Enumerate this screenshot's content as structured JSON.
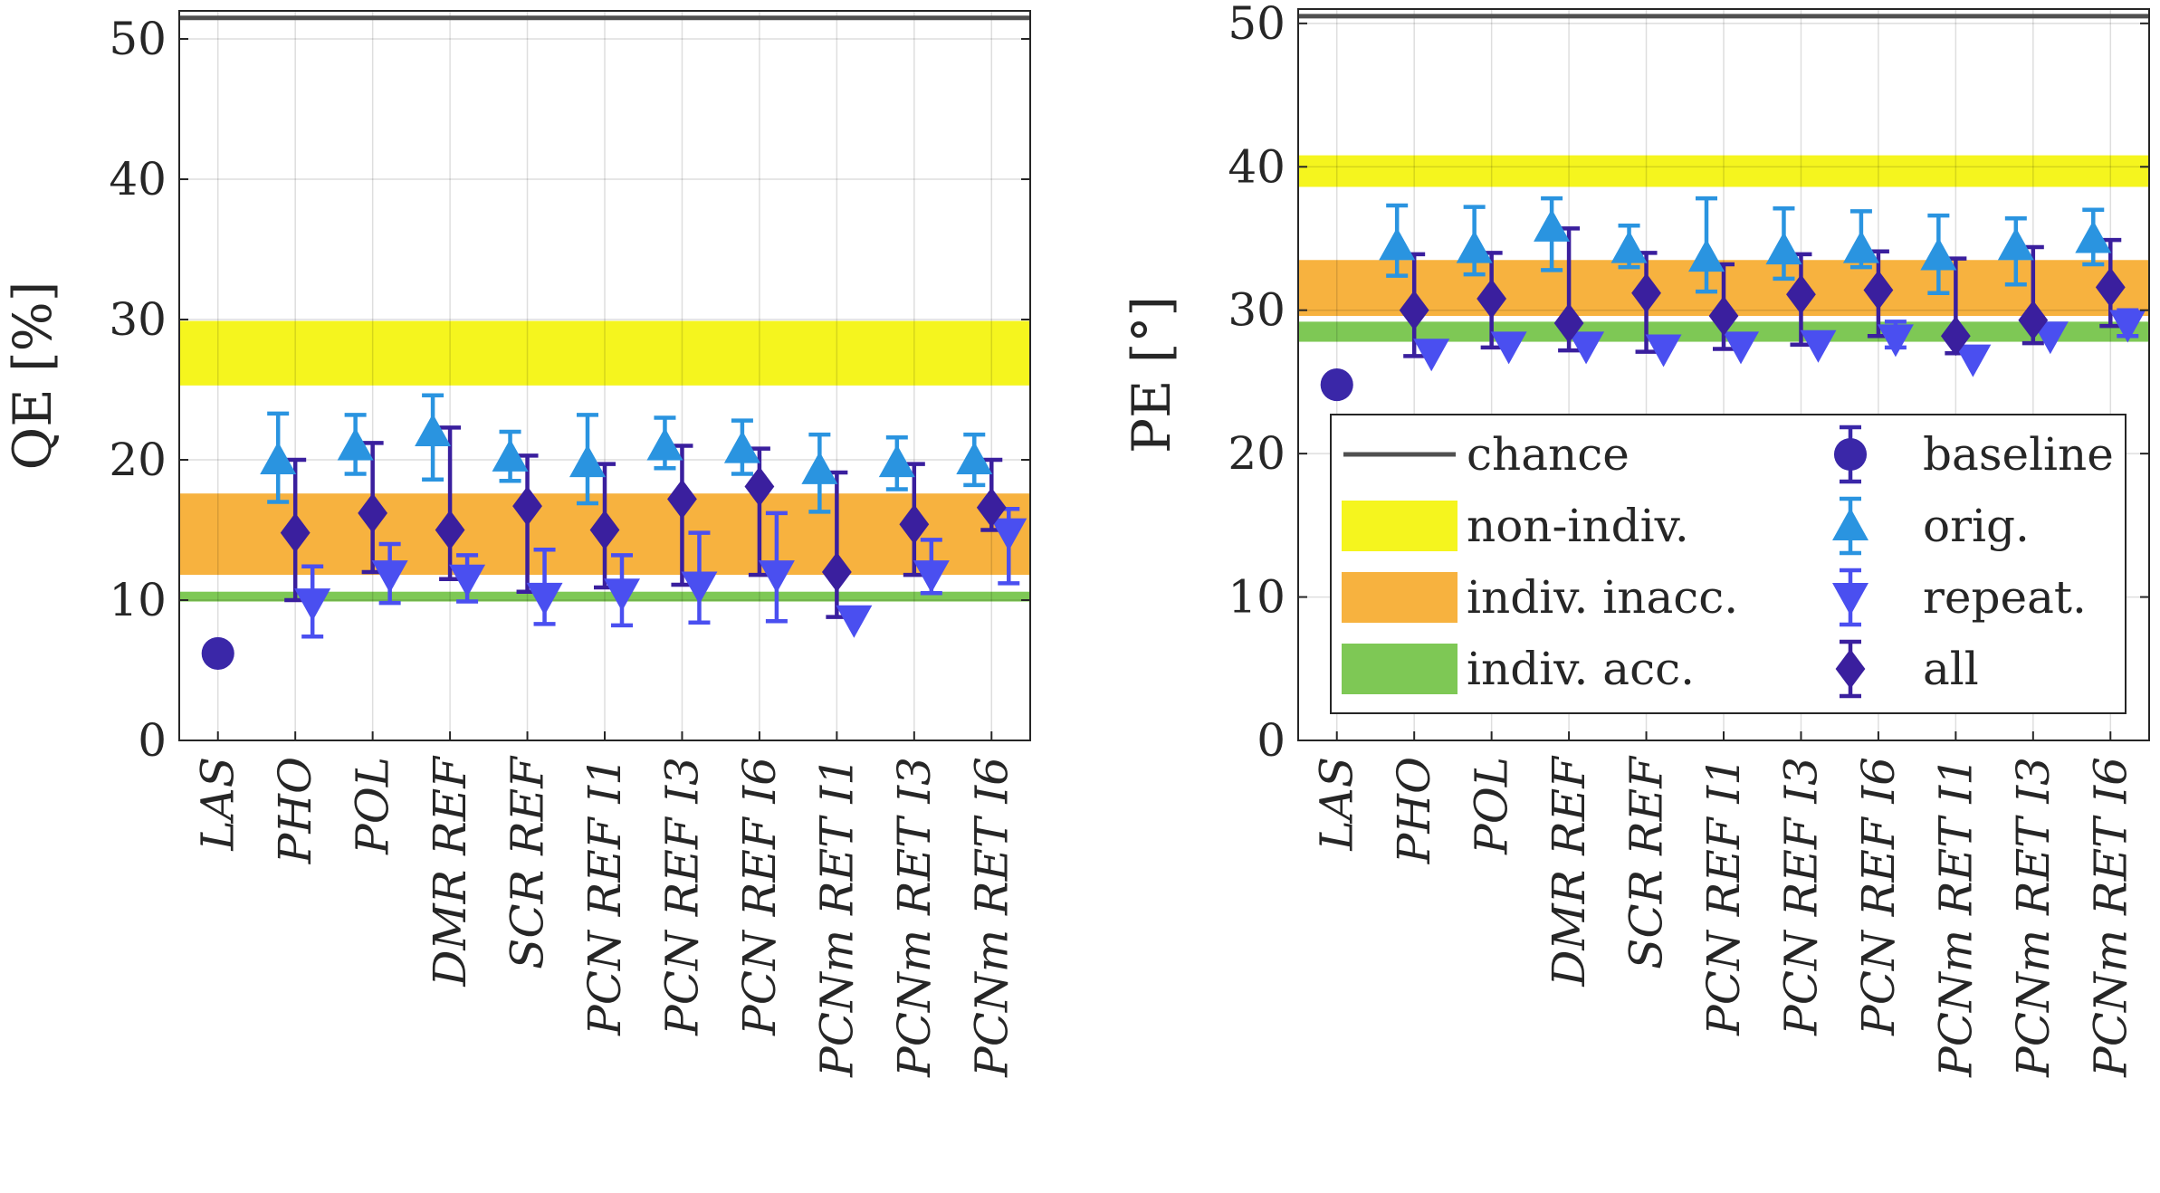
{
  "chart_data": [
    {
      "type": "errorbar",
      "ylabel": "QE [%]",
      "ylim": [
        0,
        52
      ],
      "yticks": [
        0,
        10,
        20,
        30,
        40,
        50
      ],
      "categories": [
        "LAS",
        "PHO",
        "POL",
        "DMR REF",
        "SCR REF",
        "PCN REF I1",
        "PCN REF I3",
        "PCN REF I6",
        "PCNm RET I1",
        "PCNm RET I3",
        "PCNm RET I6"
      ],
      "chance": 51.5,
      "bands": [
        {
          "name": "non-indiv.",
          "range": [
            25.3,
            29.9
          ],
          "color": "#f5f51e"
        },
        {
          "name": "indiv. inacc.",
          "range": [
            11.8,
            17.6
          ],
          "color": "#f7b23f"
        },
        {
          "name": "indiv. acc.",
          "range": [
            9.9,
            10.6
          ],
          "color": "#7ec855"
        }
      ],
      "series": [
        {
          "name": "baseline",
          "marker": "circle",
          "color": "#3a27a8",
          "points": [
            {
              "x": 0,
              "y": 6.2
            }
          ]
        },
        {
          "name": "orig.",
          "marker": "triangle-up",
          "color": "#2a94e0",
          "points": [
            {
              "x": 1,
              "y": 20.0,
              "lo": 17.0,
              "hi": 23.3
            },
            {
              "x": 2,
              "y": 21.0,
              "lo": 19.0,
              "hi": 23.2
            },
            {
              "x": 3,
              "y": 22.0,
              "lo": 18.6,
              "hi": 24.6
            },
            {
              "x": 4,
              "y": 20.2,
              "lo": 18.5,
              "hi": 22.0
            },
            {
              "x": 5,
              "y": 19.8,
              "lo": 16.9,
              "hi": 23.2
            },
            {
              "x": 6,
              "y": 21.0,
              "lo": 19.4,
              "hi": 23.0
            },
            {
              "x": 7,
              "y": 20.8,
              "lo": 19.0,
              "hi": 22.8
            },
            {
              "x": 8,
              "y": 19.3,
              "lo": 16.3,
              "hi": 21.8
            },
            {
              "x": 9,
              "y": 19.8,
              "lo": 17.9,
              "hi": 21.6
            },
            {
              "x": 10,
              "y": 20.0,
              "lo": 18.2,
              "hi": 21.8
            }
          ]
        },
        {
          "name": "repeat.",
          "marker": "triangle-down",
          "color": "#4a4ff0",
          "points": [
            {
              "x": 1,
              "y": 9.8,
              "lo": 7.4,
              "hi": 12.4
            },
            {
              "x": 2,
              "y": 11.8,
              "lo": 9.8,
              "hi": 14.0
            },
            {
              "x": 3,
              "y": 11.5,
              "lo": 9.9,
              "hi": 13.2
            },
            {
              "x": 4,
              "y": 10.2,
              "lo": 8.3,
              "hi": 13.6
            },
            {
              "x": 5,
              "y": 10.5,
              "lo": 8.2,
              "hi": 13.2
            },
            {
              "x": 6,
              "y": 11.0,
              "lo": 8.4,
              "hi": 14.8
            },
            {
              "x": 7,
              "y": 11.8,
              "lo": 8.5,
              "hi": 16.2
            },
            {
              "x": 8,
              "y": 8.6,
              "lo": 8.6,
              "hi": 8.6
            },
            {
              "x": 9,
              "y": 11.8,
              "lo": 10.5,
              "hi": 14.3
            },
            {
              "x": 10,
              "y": 14.8,
              "lo": 11.2,
              "hi": 16.5
            }
          ]
        },
        {
          "name": "all",
          "marker": "diamond",
          "color": "#3a1f9e",
          "points": [
            {
              "x": 1,
              "y": 14.8,
              "lo": 10.0,
              "hi": 20.0
            },
            {
              "x": 2,
              "y": 16.2,
              "lo": 12.0,
              "hi": 21.2
            },
            {
              "x": 3,
              "y": 15.0,
              "lo": 11.5,
              "hi": 22.3
            },
            {
              "x": 4,
              "y": 16.7,
              "lo": 10.6,
              "hi": 20.3
            },
            {
              "x": 5,
              "y": 15.0,
              "lo": 10.9,
              "hi": 19.7
            },
            {
              "x": 6,
              "y": 17.2,
              "lo": 11.1,
              "hi": 21.0
            },
            {
              "x": 7,
              "y": 18.1,
              "lo": 11.8,
              "hi": 20.8
            },
            {
              "x": 8,
              "y": 12.0,
              "lo": 8.8,
              "hi": 19.1
            },
            {
              "x": 9,
              "y": 15.4,
              "lo": 11.8,
              "hi": 19.7
            },
            {
              "x": 10,
              "y": 16.6,
              "lo": 15.0,
              "hi": 20.0
            }
          ]
        }
      ]
    },
    {
      "type": "errorbar",
      "ylabel": "PE [°]",
      "ylim": [
        0,
        51
      ],
      "yticks": [
        0,
        10,
        20,
        30,
        40,
        50
      ],
      "categories": [
        "LAS",
        "PHO",
        "POL",
        "DMR REF",
        "SCR REF",
        "PCN REF I1",
        "PCN REF I3",
        "PCN REF I6",
        "PCNm RET I1",
        "PCNm RET I3",
        "PCNm RET I6"
      ],
      "chance": 50.5,
      "bands": [
        {
          "name": "non-indiv.",
          "range": [
            38.6,
            40.8
          ],
          "color": "#f5f51e"
        },
        {
          "name": "indiv. inacc.",
          "range": [
            29.6,
            33.5
          ],
          "color": "#f7b23f"
        },
        {
          "name": "indiv. acc.",
          "range": [
            27.8,
            29.2
          ],
          "color": "#7ec855"
        }
      ],
      "series": [
        {
          "name": "baseline",
          "marker": "circle",
          "color": "#3a27a8",
          "points": [
            {
              "x": 0,
              "y": 24.8
            }
          ]
        },
        {
          "name": "orig.",
          "marker": "triangle-up",
          "color": "#2a94e0",
          "points": [
            {
              "x": 1,
              "y": 34.5,
              "lo": 32.4,
              "hi": 37.3
            },
            {
              "x": 2,
              "y": 34.3,
              "lo": 32.5,
              "hi": 37.2
            },
            {
              "x": 3,
              "y": 35.8,
              "lo": 32.8,
              "hi": 37.8
            },
            {
              "x": 4,
              "y": 34.3,
              "lo": 33.0,
              "hi": 35.9
            },
            {
              "x": 5,
              "y": 33.7,
              "lo": 31.3,
              "hi": 37.8
            },
            {
              "x": 6,
              "y": 34.2,
              "lo": 32.2,
              "hi": 37.1
            },
            {
              "x": 7,
              "y": 34.3,
              "lo": 33.0,
              "hi": 36.9
            },
            {
              "x": 8,
              "y": 33.8,
              "lo": 31.2,
              "hi": 36.6
            },
            {
              "x": 9,
              "y": 34.5,
              "lo": 31.8,
              "hi": 36.4
            },
            {
              "x": 10,
              "y": 35.0,
              "lo": 33.2,
              "hi": 37.0
            }
          ]
        },
        {
          "name": "repeat.",
          "marker": "triangle-down",
          "color": "#4a4ff0",
          "points": [
            {
              "x": 1,
              "y": 27.0,
              "lo": 27.0,
              "hi": 27.0
            },
            {
              "x": 2,
              "y": 27.5,
              "lo": 27.5,
              "hi": 27.5
            },
            {
              "x": 3,
              "y": 27.5,
              "lo": 27.5,
              "hi": 27.5
            },
            {
              "x": 4,
              "y": 27.3,
              "lo": 27.3,
              "hi": 27.3
            },
            {
              "x": 5,
              "y": 27.5,
              "lo": 27.5,
              "hi": 27.5
            },
            {
              "x": 6,
              "y": 27.6,
              "lo": 27.6,
              "hi": 27.6
            },
            {
              "x": 7,
              "y": 28.0,
              "lo": 27.4,
              "hi": 29.2
            },
            {
              "x": 8,
              "y": 26.6,
              "lo": 26.6,
              "hi": 26.6
            },
            {
              "x": 9,
              "y": 28.2,
              "lo": 28.2,
              "hi": 28.2
            },
            {
              "x": 10,
              "y": 29.0,
              "lo": 28.2,
              "hi": 30.0
            }
          ]
        },
        {
          "name": "all",
          "marker": "diamond",
          "color": "#3a1f9e",
          "points": [
            {
              "x": 1,
              "y": 30.0,
              "lo": 26.8,
              "hi": 33.9
            },
            {
              "x": 2,
              "y": 30.8,
              "lo": 27.4,
              "hi": 34.0
            },
            {
              "x": 3,
              "y": 29.1,
              "lo": 27.2,
              "hi": 35.7
            },
            {
              "x": 4,
              "y": 31.2,
              "lo": 27.1,
              "hi": 34.0
            },
            {
              "x": 5,
              "y": 29.6,
              "lo": 27.3,
              "hi": 33.2
            },
            {
              "x": 6,
              "y": 31.1,
              "lo": 27.6,
              "hi": 33.9
            },
            {
              "x": 7,
              "y": 31.4,
              "lo": 28.2,
              "hi": 34.1
            },
            {
              "x": 8,
              "y": 28.2,
              "lo": 27.0,
              "hi": 33.6
            },
            {
              "x": 9,
              "y": 29.3,
              "lo": 27.7,
              "hi": 34.4
            },
            {
              "x": 10,
              "y": 31.6,
              "lo": 28.9,
              "hi": 34.9
            }
          ]
        }
      ],
      "legend": {
        "location": "lower-right",
        "entries": [
          "chance",
          "non-indiv.",
          "indiv. inacc.",
          "indiv. acc.",
          "baseline",
          "orig.",
          "repeat.",
          "all"
        ]
      }
    }
  ]
}
